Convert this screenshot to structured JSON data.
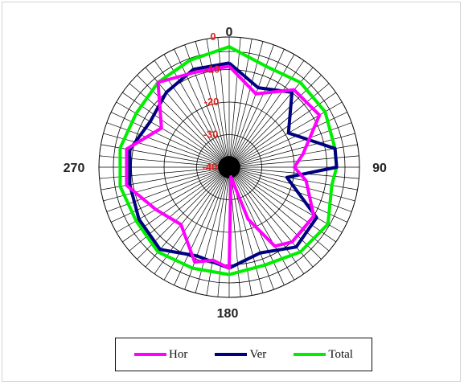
{
  "chart_data": {
    "type": "polar-line",
    "angle_ticks": [
      {
        "angle": 0,
        "label": "0"
      },
      {
        "angle": 90,
        "label": "90"
      },
      {
        "angle": 180,
        "label": "180"
      },
      {
        "angle": 270,
        "label": "270"
      }
    ],
    "radial_ticks": [
      {
        "value": 0,
        "label": "0"
      },
      {
        "value": -10,
        "label": "-10"
      },
      {
        "value": -20,
        "label": "-20"
      },
      {
        "value": -30,
        "label": "-30"
      },
      {
        "value": -40,
        "label": "-40"
      }
    ],
    "r_range": [
      -40,
      0
    ],
    "direction": "clockwise",
    "zero_at": "top",
    "grid": true,
    "legend_position": "bottom",
    "colors": {
      "hor": "#ff00ff",
      "ver": "#000080",
      "total": "#00ee00",
      "grid": "#000000",
      "radial_labels": "#e0201c"
    },
    "series": [
      {
        "name": "Hor",
        "color": "#ff00ff",
        "angles": [
          0,
          20,
          40,
          60,
          80,
          90,
          100,
          120,
          140,
          150,
          160,
          170,
          180,
          190,
          200,
          220,
          240,
          260,
          280,
          300,
          320,
          340,
          360
        ],
        "values": [
          -9,
          -16,
          -9,
          -8,
          -17,
          -20,
          -16,
          -10,
          -10,
          -12,
          -23,
          -37,
          -9,
          -11,
          -9,
          -17,
          -14,
          -8,
          -8,
          -16,
          -6,
          -9,
          -9
        ]
      },
      {
        "name": "Ver",
        "color": "#000080",
        "angles": [
          0,
          20,
          40,
          60,
          80,
          90,
          100,
          120,
          140,
          160,
          180,
          200,
          220,
          240,
          260,
          280,
          300,
          320,
          340,
          360
        ],
        "values": [
          -8,
          -14,
          -10,
          -19,
          -7,
          -7,
          -22,
          -9,
          -8,
          -12,
          -9,
          -11,
          -7,
          -8,
          -9,
          -9,
          -12,
          -10,
          -8,
          -8
        ]
      },
      {
        "name": "Total",
        "color": "#00ee00",
        "angles": [
          0,
          20,
          40,
          60,
          80,
          90,
          100,
          120,
          140,
          160,
          180,
          200,
          220,
          240,
          260,
          280,
          300,
          320,
          340,
          360
        ],
        "values": [
          -3,
          -7,
          -6,
          -6,
          -7,
          -7,
          -8,
          -5,
          -6,
          -8,
          -7,
          -7,
          -6,
          -7,
          -6,
          -6,
          -7,
          -6,
          -5,
          -3
        ]
      }
    ]
  }
}
